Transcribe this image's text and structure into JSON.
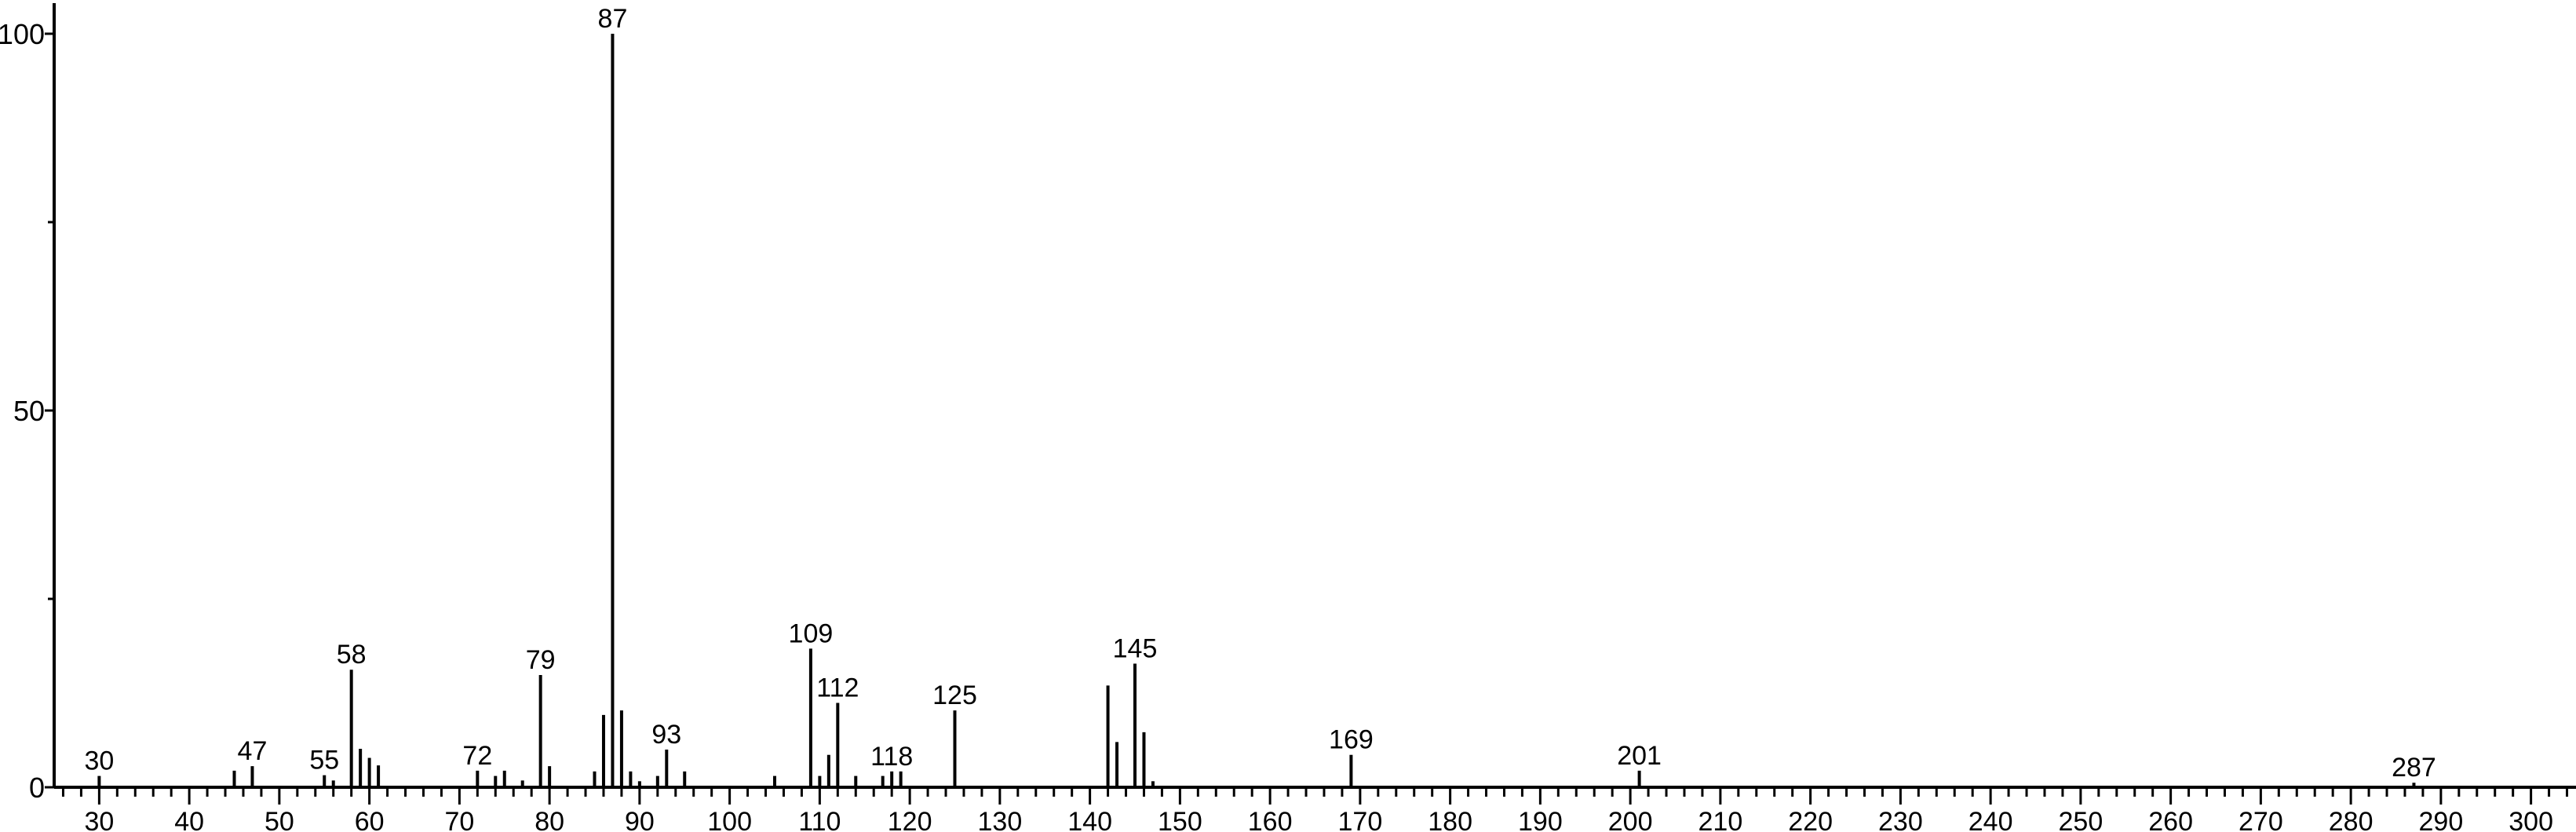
{
  "chart_data": {
    "type": "bar",
    "title": "",
    "xlabel": "",
    "ylabel": "",
    "xlim": [
      25,
      305
    ],
    "ylim": [
      0,
      100
    ],
    "grid": false,
    "x_ticks": [
      30,
      40,
      50,
      60,
      70,
      80,
      90,
      100,
      110,
      120,
      130,
      140,
      150,
      160,
      170,
      180,
      190,
      200,
      210,
      220,
      230,
      240,
      250,
      260,
      270,
      280,
      290,
      300
    ],
    "y_ticks": [
      0,
      50,
      100
    ],
    "y_minor_ticks": [
      25,
      75
    ],
    "bar_color": "#000000",
    "peaks": [
      {
        "x": 30,
        "y": 1.5,
        "label": "30"
      },
      {
        "x": 45,
        "y": 2.2
      },
      {
        "x": 47,
        "y": 2.8,
        "label": "47"
      },
      {
        "x": 55,
        "y": 1.6,
        "label": "55"
      },
      {
        "x": 56,
        "y": 0.9
      },
      {
        "x": 58,
        "y": 15.6,
        "label": "58"
      },
      {
        "x": 59,
        "y": 5.1
      },
      {
        "x": 60,
        "y": 3.9
      },
      {
        "x": 61,
        "y": 2.9
      },
      {
        "x": 72,
        "y": 2.2,
        "label": "72"
      },
      {
        "x": 74,
        "y": 1.5
      },
      {
        "x": 75,
        "y": 2.2
      },
      {
        "x": 77,
        "y": 0.9
      },
      {
        "x": 79,
        "y": 14.9,
        "label": "79"
      },
      {
        "x": 80,
        "y": 2.8
      },
      {
        "x": 85,
        "y": 2.1
      },
      {
        "x": 86,
        "y": 9.6
      },
      {
        "x": 87,
        "y": 100,
        "label": "87"
      },
      {
        "x": 88,
        "y": 10.2
      },
      {
        "x": 89,
        "y": 2.1
      },
      {
        "x": 90,
        "y": 0.8
      },
      {
        "x": 92,
        "y": 1.5
      },
      {
        "x": 93,
        "y": 5.0,
        "label": "93"
      },
      {
        "x": 95,
        "y": 2.1
      },
      {
        "x": 105,
        "y": 1.5
      },
      {
        "x": 109,
        "y": 18.4,
        "label": "109"
      },
      {
        "x": 110,
        "y": 1.5
      },
      {
        "x": 111,
        "y": 4.3
      },
      {
        "x": 112,
        "y": 11.2,
        "label": "112"
      },
      {
        "x": 114,
        "y": 1.5
      },
      {
        "x": 117,
        "y": 1.5
      },
      {
        "x": 118,
        "y": 2.1,
        "label": "118"
      },
      {
        "x": 119,
        "y": 2.1
      },
      {
        "x": 125,
        "y": 10.2,
        "label": "125"
      },
      {
        "x": 142,
        "y": 13.5
      },
      {
        "x": 143,
        "y": 6.0
      },
      {
        "x": 145,
        "y": 16.4,
        "label": "145"
      },
      {
        "x": 146,
        "y": 7.3
      },
      {
        "x": 147,
        "y": 0.8
      },
      {
        "x": 169,
        "y": 4.3,
        "label": "169"
      },
      {
        "x": 201,
        "y": 2.2,
        "label": "201"
      },
      {
        "x": 287,
        "y": 0.6,
        "label": "287"
      }
    ]
  }
}
